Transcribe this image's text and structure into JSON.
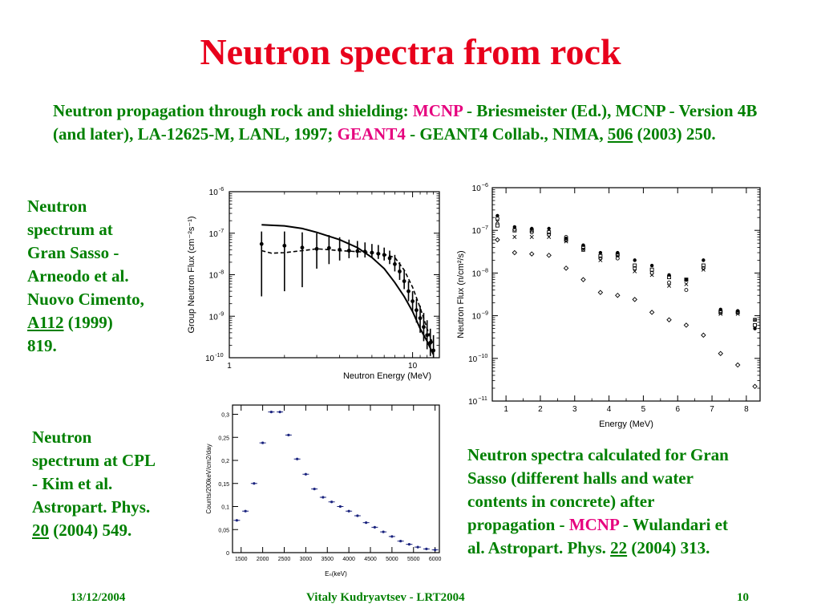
{
  "title": "Neutron spectra from rock",
  "reference": {
    "p1": "Neutron propagation through rock and shielding: ",
    "mcnp": "MCNP",
    "p2": " - Briesmeister (Ed.), MCNP - Version 4B (and later), LA-12625-M, LANL, 1997; ",
    "geant": "GEANT4",
    "p3": " - GEANT4 Collab., NIMA, ",
    "vol": "506",
    "p4": " (2003) 250."
  },
  "gran_sasso_caption": {
    "l1": "Neutron",
    "l2": "spectrum at",
    "l3": "Gran Sasso -",
    "l4": "Arneodo et al.",
    "l5": "Nuovo Cimento,",
    "vol": "A112",
    "l6rest": " (1999)",
    "l7": "819."
  },
  "cpl_caption": {
    "l1": "Neutron",
    "l2": "spectrum at CPL",
    "l3": "- Kim et al.",
    "l4": "Astropart. Phys.",
    "vol": "20",
    "l5rest": " (2004) 549."
  },
  "halls_caption": {
    "l1": "Neutron spectra calculated for Gran",
    "l2": "Sasso (different halls and water",
    "l3": "contents in concrete) after",
    "l4a": "propagation - ",
    "mcnp": "MCNP",
    "l4b": " - Wulandari et",
    "l5a": "al. Astropart. Phys. ",
    "vol": "22",
    "l5b": " (2004) 313."
  },
  "footer": {
    "date": "13/12/2004",
    "author": "Vitaly Kudryavtsev - LRT2004",
    "page": "10"
  },
  "chart_data": [
    {
      "id": "arneodo",
      "type": "line",
      "xlabel": "Neutron Energy (MeV)",
      "ylabel": "Group Neutron Flux  (cm⁻²s⁻¹)",
      "xscale": "log",
      "yscale": "log",
      "xlim": [
        1,
        14
      ],
      "ylim": [
        1e-10,
        1e-06
      ],
      "xticks": [
        {
          "v": 1,
          "label": "1"
        },
        {
          "v": 10,
          "label": "10"
        }
      ],
      "yticks": [
        {
          "v": -6,
          "label": "10",
          "exp": "-6"
        },
        {
          "v": -7,
          "label": "10",
          "exp": "-7"
        },
        {
          "v": -8,
          "label": "10",
          "exp": "-8"
        },
        {
          "v": -9,
          "label": "10",
          "exp": "-9"
        },
        {
          "v": -10,
          "label": "10",
          "exp": "-10"
        }
      ],
      "solid_curve": {
        "x": [
          1.5,
          2,
          2.5,
          3,
          4,
          5,
          6,
          7,
          8,
          9,
          10,
          11,
          12,
          13
        ],
        "y": [
          1.6e-07,
          1.5e-07,
          1.3e-07,
          1.05e-07,
          7e-08,
          4.5e-08,
          2.6e-08,
          1.4e-08,
          6.5e-09,
          3e-09,
          1.3e-09,
          5e-10,
          2.5e-10,
          1.2e-10
        ]
      },
      "dashed_curve": {
        "x": [
          1.5,
          1.7,
          2,
          2.5,
          3,
          3.5,
          4,
          5,
          6,
          7,
          8,
          9,
          10,
          11,
          12,
          13
        ],
        "y": [
          3.8e-08,
          3.3e-08,
          3.4e-08,
          3.8e-08,
          4.2e-08,
          4e-08,
          3.8e-08,
          3.6e-08,
          3.4e-08,
          3.1e-08,
          2.6e-08,
          1.3e-08,
          5e-09,
          1.6e-09,
          5e-10,
          2e-10
        ]
      },
      "points": {
        "x": [
          1.5,
          2,
          2.5,
          3,
          3.5,
          4,
          4.5,
          5,
          5.5,
          6,
          6.5,
          7,
          7.5,
          8,
          8.5,
          9,
          9.5,
          10,
          10.5,
          11,
          11.5,
          12,
          12.5,
          13
        ],
        "y": [
          5.5e-08,
          5e-08,
          4.5e-08,
          4.2e-08,
          4.4e-08,
          4e-08,
          3.8e-08,
          3.7e-08,
          3.6e-08,
          3.4e-08,
          3.2e-08,
          3e-08,
          2.5e-08,
          1.8e-08,
          1.2e-08,
          7e-09,
          4e-09,
          2.3e-09,
          1.4e-09,
          9e-10,
          5.5e-10,
          3.5e-10,
          2.3e-10,
          1.5e-10
        ],
        "ylo": [
          3e-09,
          4e-09,
          5e-09,
          1.4e-08,
          1.8e-08,
          2.2e-08,
          2.5e-08,
          2.6e-08,
          2.6e-08,
          2.6e-08,
          2.4e-08,
          2.2e-08,
          1.8e-08,
          1.2e-08,
          7.5e-09,
          4.5e-09,
          2.3e-09,
          1.3e-09,
          7e-10,
          4e-10,
          2.5e-10,
          1.6e-10,
          1.1e-10,
          1e-10
        ],
        "yhi": [
          1.1e-07,
          1.1e-07,
          1.05e-07,
          1e-07,
          9e-08,
          8e-08,
          7e-08,
          6.5e-08,
          6e-08,
          5.5e-08,
          5.2e-08,
          4.5e-08,
          3.8e-08,
          3e-08,
          2e-08,
          1.3e-08,
          7e-09,
          4e-09,
          2.6e-09,
          1.8e-09,
          1.2e-09,
          8e-10,
          5e-10,
          3.5e-10
        ]
      }
    },
    {
      "id": "wulandari",
      "type": "scatter",
      "xlabel": "Energy (MeV)",
      "ylabel": "Neutron Flux (n/cm²/s)",
      "xscale": "linear",
      "yscale": "log",
      "xlim": [
        0.6,
        8.4
      ],
      "ylim": [
        1e-11,
        1e-06
      ],
      "xticks": [
        {
          "v": 1,
          "label": "1"
        },
        {
          "v": 2,
          "label": "2"
        },
        {
          "v": 3,
          "label": "3"
        },
        {
          "v": 4,
          "label": "4"
        },
        {
          "v": 5,
          "label": "5"
        },
        {
          "v": 6,
          "label": "6"
        },
        {
          "v": 7,
          "label": "7"
        },
        {
          "v": 8,
          "label": "8"
        }
      ],
      "yticks": [
        {
          "v": -6,
          "label": "10",
          "exp": "−6"
        },
        {
          "v": -7,
          "label": "10",
          "exp": "−7"
        },
        {
          "v": -8,
          "label": "10",
          "exp": "−8"
        },
        {
          "v": -9,
          "label": "10",
          "exp": "−9"
        },
        {
          "v": -10,
          "label": "10",
          "exp": "−10"
        },
        {
          "v": -11,
          "label": "10",
          "exp": "−11"
        }
      ],
      "series": [
        {
          "marker": "dot",
          "x": [
            0.75,
            1.25,
            1.75,
            2.25,
            2.75,
            3.25,
            3.75,
            4.25,
            4.75,
            5.25,
            5.75,
            6.25,
            6.75,
            7.25,
            7.75,
            8.25
          ],
          "y": [
            2.2e-07,
            1.2e-07,
            1.1e-07,
            1.1e-07,
            6.5e-08,
            4.5e-08,
            3e-08,
            3e-08,
            2e-08,
            1.5e-08,
            9e-09,
            7e-09,
            2e-08,
            1.4e-09,
            1.3e-09,
            5e-10
          ]
        },
        {
          "marker": "cross",
          "x": [
            0.75,
            1.25,
            1.75,
            2.25,
            2.75,
            3.25,
            3.75,
            4.25,
            4.75,
            5.25,
            5.75,
            6.25,
            6.75,
            7.25,
            7.75,
            8.25
          ],
          "y": [
            1.6e-07,
            7e-08,
            7e-08,
            7e-08,
            5.5e-08,
            3.5e-08,
            2e-08,
            2.5e-08,
            1.1e-08,
            9e-09,
            5e-09,
            5.5e-09,
            1.2e-08,
            1.1e-09,
            1.1e-09,
            8e-10
          ]
        },
        {
          "marker": "square",
          "x": [
            0.75,
            1.25,
            1.75,
            2.25,
            2.75,
            3.25,
            3.75,
            4.25,
            4.75,
            5.25,
            5.75,
            6.25,
            6.75,
            7.25,
            7.75,
            8.25
          ],
          "y": [
            1.3e-07,
            1e-07,
            1e-07,
            9e-08,
            6e-08,
            4e-08,
            2.5e-08,
            2.7e-08,
            1.5e-08,
            1.2e-08,
            8e-09,
            7e-09,
            1.5e-08,
            1.2e-09,
            1.2e-09,
            6e-10
          ]
        },
        {
          "marker": "circle",
          "x": [
            0.75,
            1.25,
            1.75,
            2.25,
            2.75,
            3.25,
            3.75,
            4.25,
            4.75,
            5.25,
            5.75,
            6.25,
            6.75,
            7.25,
            7.75,
            8.25
          ],
          "y": [
            1.9e-07,
            1.05e-07,
            9e-08,
            8e-08,
            7e-08,
            3.5e-08,
            2.2e-08,
            2.2e-08,
            1.3e-08,
            1e-08,
            6e-09,
            4e-09,
            1.3e-08,
            1.3e-09,
            1.2e-09,
            8e-10
          ]
        },
        {
          "marker": "diamond",
          "x": [
            0.75,
            1.25,
            1.75,
            2.25,
            2.75,
            3.25,
            3.75,
            4.25,
            4.75,
            5.25,
            5.75,
            6.25,
            6.75,
            7.25,
            7.75,
            8.25
          ],
          "y": [
            6e-08,
            3e-08,
            2.8e-08,
            2.6e-08,
            1.3e-08,
            7e-09,
            3.5e-09,
            3e-09,
            2.4e-09,
            1.2e-09,
            8e-10,
            6e-10,
            3.5e-10,
            1.3e-10,
            7e-11,
            2.2e-11
          ]
        }
      ]
    },
    {
      "id": "kim",
      "type": "scatter",
      "xlabel": "Eₙ(keV)",
      "ylabel": "Counts/200keV/cm2/day",
      "xscale": "linear",
      "yscale": "linear",
      "xlim": [
        1300,
        6100
      ],
      "ylim": [
        0,
        0.32
      ],
      "xticks": [
        {
          "v": 1500,
          "label": "1500"
        },
        {
          "v": 2000,
          "label": "2000"
        },
        {
          "v": 2500,
          "label": "2500"
        },
        {
          "v": 3000,
          "label": "3000"
        },
        {
          "v": 3500,
          "label": "3500"
        },
        {
          "v": 4000,
          "label": "4000"
        },
        {
          "v": 4500,
          "label": "4500"
        },
        {
          "v": 5000,
          "label": "5000"
        },
        {
          "v": 5500,
          "label": "5500"
        },
        {
          "v": 6000,
          "label": "6000"
        }
      ],
      "yticks": [
        {
          "v": 0,
          "label": "0"
        },
        {
          "v": 0.05,
          "label": "0,05"
        },
        {
          "v": 0.1,
          "label": "0,1"
        },
        {
          "v": 0.15,
          "label": "0,15"
        },
        {
          "v": 0.2,
          "label": "0,2"
        },
        {
          "v": 0.25,
          "label": "0,25"
        },
        {
          "v": 0.3,
          "label": "0,3"
        }
      ],
      "points": {
        "x": [
          1400,
          1600,
          1800,
          2000,
          2200,
          2400,
          2600,
          2800,
          3000,
          3200,
          3400,
          3600,
          3800,
          4000,
          4200,
          4400,
          4600,
          4800,
          5000,
          5200,
          5400,
          5600,
          5800,
          6000
        ],
        "y": [
          0.07,
          0.09,
          0.15,
          0.238,
          0.305,
          0.305,
          0.255,
          0.203,
          0.17,
          0.138,
          0.12,
          0.11,
          0.1,
          0.09,
          0.08,
          0.065,
          0.055,
          0.045,
          0.035,
          0.025,
          0.018,
          0.012,
          0.008,
          0.006
        ]
      }
    }
  ]
}
